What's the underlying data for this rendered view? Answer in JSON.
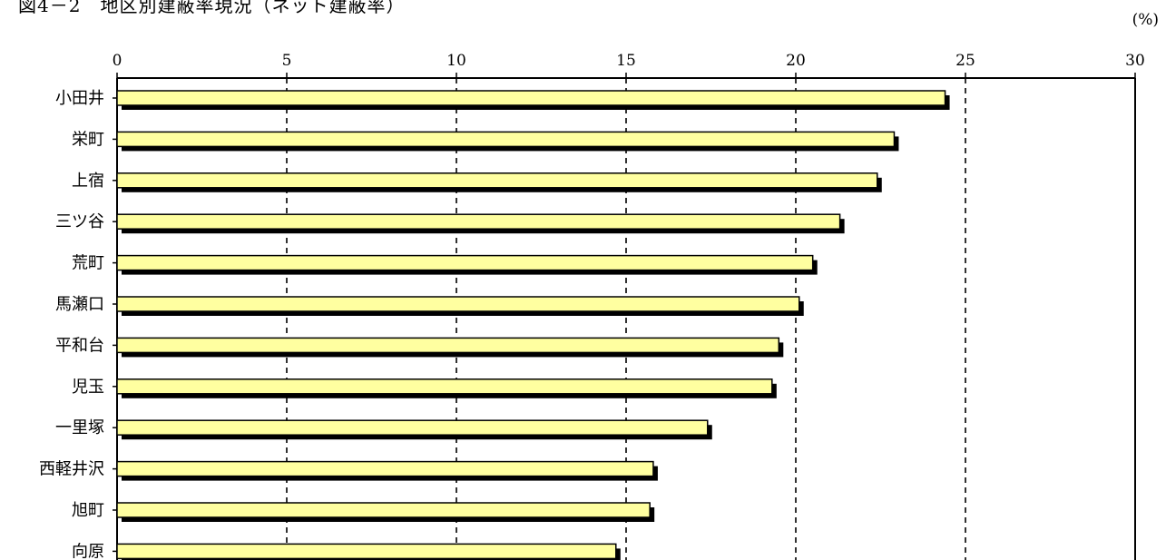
{
  "chart_data": {
    "type": "bar",
    "orientation": "horizontal",
    "title": "図4－2　地区別建蔽率現況（ネット建蔽率）",
    "unit": "(%)",
    "categories": [
      "小田井",
      "栄町",
      "上宿",
      "三ツ谷",
      "荒町",
      "馬瀬口",
      "平和台",
      "児玉",
      "一里塚",
      "西軽井沢",
      "旭町",
      "向原"
    ],
    "values": [
      24.4,
      22.9,
      22.4,
      21.3,
      20.5,
      20.1,
      19.5,
      19.3,
      17.4,
      15.8,
      15.7,
      14.7
    ],
    "xlim": [
      0,
      30
    ],
    "xticks": [
      0,
      5,
      10,
      15,
      20,
      25,
      30
    ],
    "grid": "vertical dashed",
    "legend": "none",
    "xlabel": "",
    "ylabel": "",
    "colors": {
      "bar_fill": "#ffffa0",
      "bar_stroke": "#000000",
      "bar_shadow": "#000000",
      "grid": "#000000"
    }
  }
}
